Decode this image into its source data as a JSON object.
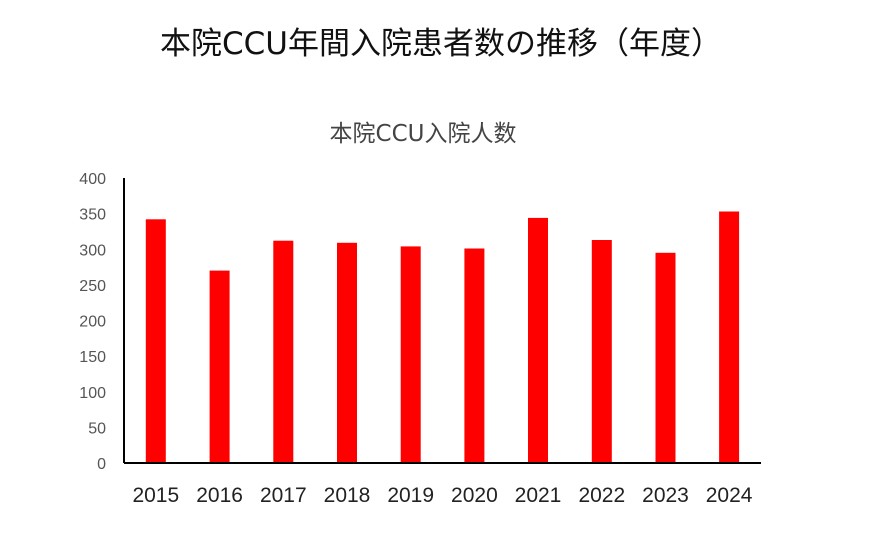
{
  "page_title": "本院CCU年間入院患者数の推移（年度）",
  "chart_data": {
    "type": "bar",
    "title": "本院CCU入院人数",
    "categories": [
      "2015",
      "2016",
      "2017",
      "2018",
      "2019",
      "2020",
      "2021",
      "2022",
      "2023",
      "2024"
    ],
    "values": [
      342,
      270,
      312,
      309,
      304,
      301,
      344,
      313,
      295,
      353
    ],
    "ylim": [
      0,
      400
    ],
    "yticks": [
      0,
      50,
      100,
      150,
      200,
      250,
      300,
      350,
      400
    ],
    "bar_color": "#ff0000",
    "axis_color": "#000000",
    "grid": false,
    "legend": false
  }
}
